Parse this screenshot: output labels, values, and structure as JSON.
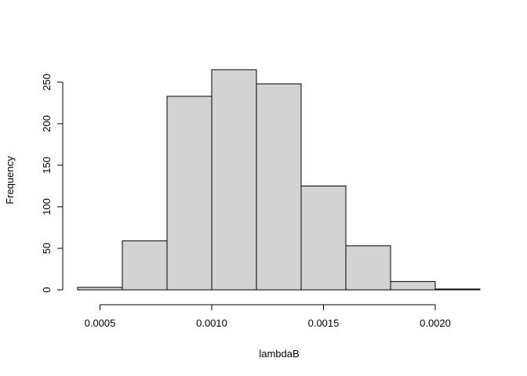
{
  "chart_data": {
    "type": "bar",
    "subtype": "histogram",
    "title": "",
    "xlabel": "lambdaB",
    "ylabel": "Frequency",
    "bins": [
      {
        "x0": 0.0004,
        "x1": 0.0006,
        "count": 3
      },
      {
        "x0": 0.0006,
        "x1": 0.0008,
        "count": 59
      },
      {
        "x0": 0.0008,
        "x1": 0.001,
        "count": 233
      },
      {
        "x0": 0.001,
        "x1": 0.0012,
        "count": 265
      },
      {
        "x0": 0.0012,
        "x1": 0.0014,
        "count": 248
      },
      {
        "x0": 0.0014,
        "x1": 0.0016,
        "count": 125
      },
      {
        "x0": 0.0016,
        "x1": 0.0018,
        "count": 53
      },
      {
        "x0": 0.0018,
        "x1": 0.002,
        "count": 10
      },
      {
        "x0": 0.002,
        "x1": 0.0022,
        "count": 1
      }
    ],
    "xticks": [
      {
        "value": 0.0005,
        "label": "0.0005"
      },
      {
        "value": 0.001,
        "label": "0.0010"
      },
      {
        "value": 0.0015,
        "label": "0.0015"
      },
      {
        "value": 0.002,
        "label": "0.0020"
      }
    ],
    "yticks": [
      {
        "value": 0,
        "label": "0"
      },
      {
        "value": 50,
        "label": "50"
      },
      {
        "value": 100,
        "label": "100"
      },
      {
        "value": 150,
        "label": "150"
      },
      {
        "value": 200,
        "label": "200"
      },
      {
        "value": 250,
        "label": "250"
      }
    ],
    "xlim": [
      0.0004,
      0.0022
    ],
    "ylim": [
      0,
      265
    ],
    "grid": false,
    "colors": {
      "bar_fill": "#d3d3d3",
      "bar_stroke": "#000000"
    }
  }
}
